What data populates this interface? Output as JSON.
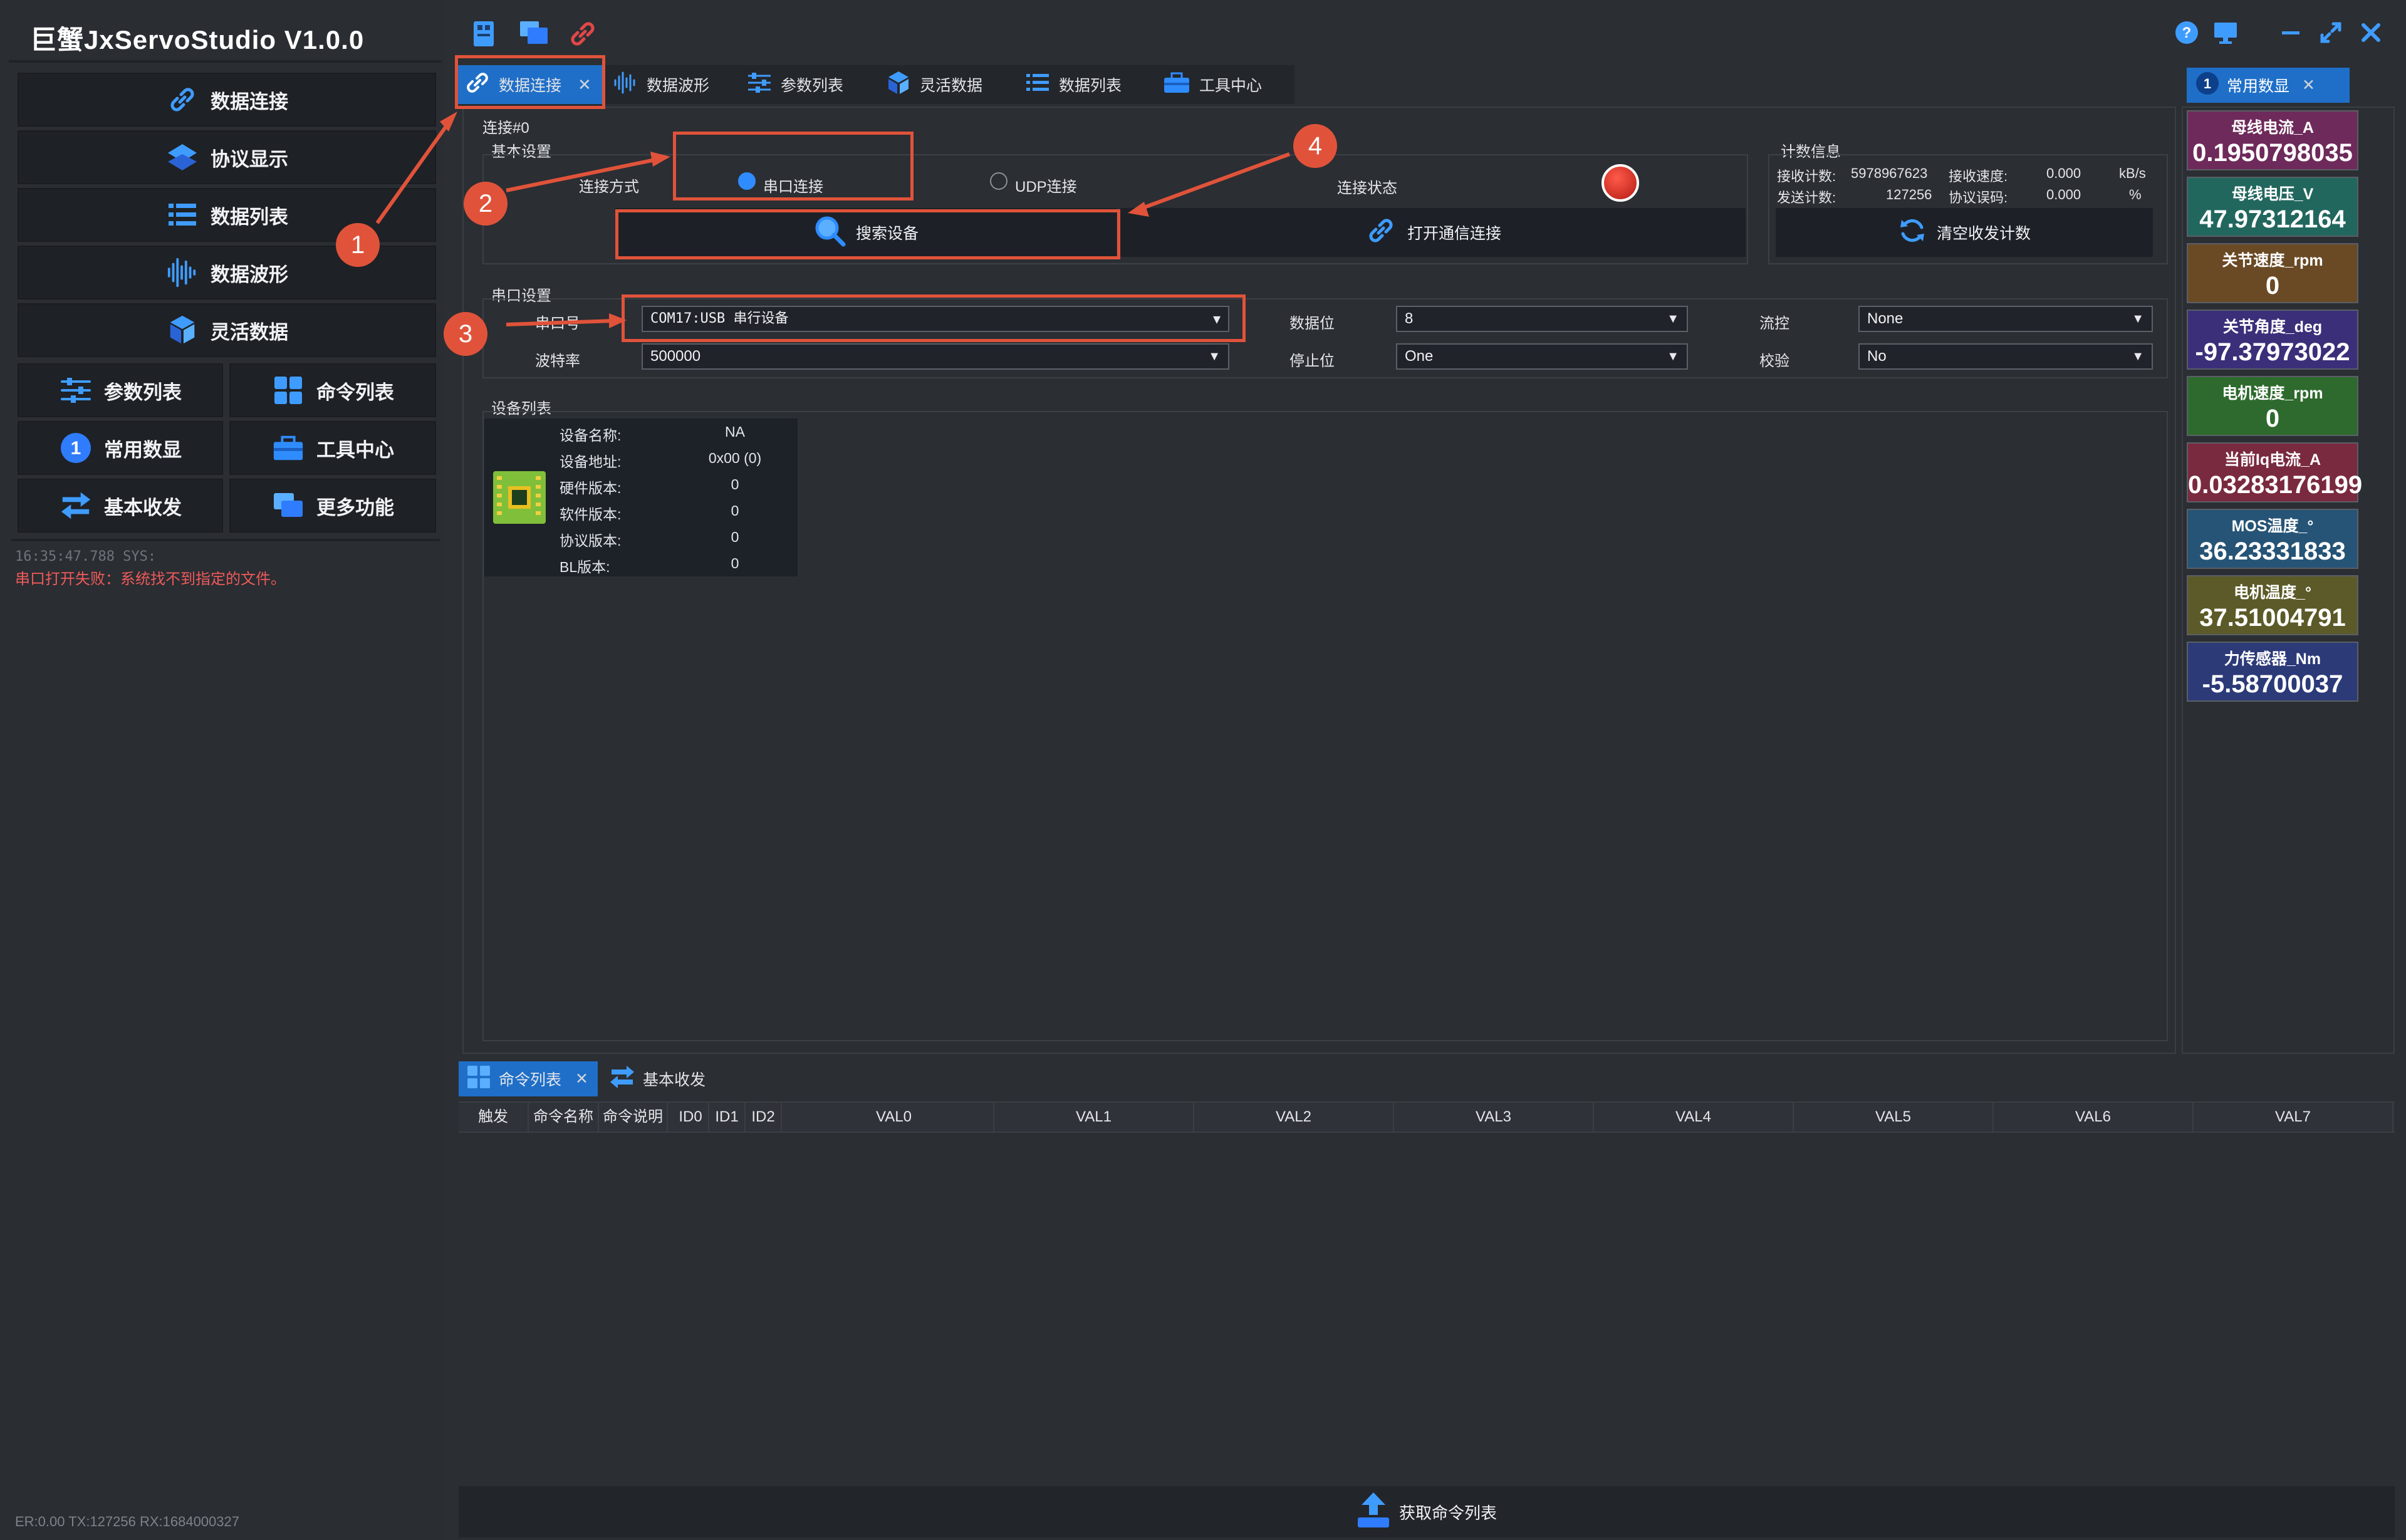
{
  "app": {
    "title": "巨蟹JxServoStudio   V1.0.0"
  },
  "sidebar": {
    "nav": [
      {
        "label": "数据连接",
        "icon": "link-icon"
      },
      {
        "label": "协议显示",
        "icon": "layers-icon"
      },
      {
        "label": "数据列表",
        "icon": "list-icon"
      },
      {
        "label": "数据波形",
        "icon": "waveform-icon"
      },
      {
        "label": "灵活数据",
        "icon": "cube-icon"
      }
    ],
    "grid": [
      {
        "label": "参数列表",
        "icon": "sliders-icon"
      },
      {
        "label": "命令列表",
        "icon": "grid-icon"
      },
      {
        "label": "常用数显",
        "icon": "number-one-icon"
      },
      {
        "label": "工具中心",
        "icon": "toolbox-icon"
      },
      {
        "label": "基本收发",
        "icon": "swap-icon"
      },
      {
        "label": "更多功能",
        "icon": "windows-icon"
      }
    ],
    "log_time": "16:35:47.788 SYS:",
    "log_message": "串口打开失败：系统找不到指定的文件。",
    "status_footer": "ER:0.00 TX:127256 RX:1684000327"
  },
  "tabs": [
    {
      "label": "数据连接",
      "icon": "link-icon",
      "active": true
    },
    {
      "label": "数据波形",
      "icon": "waveform-icon"
    },
    {
      "label": "参数列表",
      "icon": "sliders-icon"
    },
    {
      "label": "灵活数据",
      "icon": "cube-icon"
    },
    {
      "label": "数据列表",
      "icon": "list-icon"
    },
    {
      "label": "工具中心",
      "icon": "toolbox-icon"
    }
  ],
  "tab_close": "✕",
  "connection": {
    "heading": "连接#0",
    "basic_settings": "基本设置",
    "mode_label": "连接方式",
    "serial_option": "串口连接",
    "udp_option": "UDP连接",
    "status_label": "连接状态",
    "search_button": "搜索设备",
    "open_button": "打开通信连接"
  },
  "stats": {
    "heading": "计数信息",
    "rx_count_label": "接收计数:",
    "rx_count": "5978967623",
    "rx_speed_label": "接收速度:",
    "rx_speed": "0.000",
    "rx_speed_unit": "kB/s",
    "tx_count_label": "发送计数:",
    "tx_count": "127256",
    "err_label": "协议误码:",
    "err_rate": "0.000",
    "err_unit": "%",
    "clear_button": "清空收发计数"
  },
  "serial": {
    "heading": "串口设置",
    "port_label": "串口号",
    "port_value": "COM17:USB 串行设备",
    "baud_label": "波特率",
    "baud_value": "500000",
    "databits_label": "数据位",
    "databits_value": "8",
    "stopbits_label": "停止位",
    "stopbits_value": "One",
    "flow_label": "流控",
    "flow_value": "None",
    "parity_label": "校验",
    "parity_value": "No"
  },
  "devices": {
    "heading": "设备列表",
    "rows": [
      {
        "label": "设备名称:",
        "value": "NA"
      },
      {
        "label": "设备地址:",
        "value": "0x00 (0)"
      },
      {
        "label": "硬件版本:",
        "value": "0"
      },
      {
        "label": "软件版本:",
        "value": "0"
      },
      {
        "label": "协议版本:",
        "value": "0"
      },
      {
        "label": "BL版本:",
        "value": "0"
      }
    ]
  },
  "right_panel": {
    "tab_label": "常用数显",
    "badge": "1",
    "cards": [
      {
        "title": "母线电流_A",
        "value": "0.1950798035",
        "color": "#6e2a5a"
      },
      {
        "title": "母线电压_V",
        "value": "47.97312164",
        "color": "#22675e"
      },
      {
        "title": "关节速度_rpm",
        "value": "0",
        "color": "#6a4a25"
      },
      {
        "title": "关节角度_deg",
        "value": "-97.37973022",
        "color": "#3b2f7a"
      },
      {
        "title": "电机速度_rpm",
        "value": "0",
        "color": "#2e6a2e"
      },
      {
        "title": "当前Iq电流_A",
        "value": "0.03283176199",
        "color": "#7a2a3e"
      },
      {
        "title": "MOS温度_°",
        "value": "36.23331833",
        "color": "#265476"
      },
      {
        "title": "电机温度_°",
        "value": "37.51004791",
        "color": "#5c5a28"
      },
      {
        "title": "力传感器_Nm",
        "value": "-5.58700037",
        "color": "#2c3a78"
      }
    ]
  },
  "bottom": {
    "tabs": [
      {
        "label": "命令列表",
        "icon": "grid-icon",
        "active": true
      },
      {
        "label": "基本收发",
        "icon": "swap-icon"
      }
    ],
    "columns": [
      "触发",
      "命令名称",
      "命令说明",
      "ID0",
      "ID1",
      "ID2",
      "VAL0",
      "VAL1",
      "VAL2",
      "VAL3",
      "VAL4",
      "VAL5",
      "VAL6",
      "VAL7"
    ],
    "fetch_button": "获取命令列表"
  },
  "annotations": [
    "1",
    "2",
    "3",
    "4"
  ],
  "colors": {
    "accent": "#1f6fc8",
    "annotation": "#e0533a",
    "error": "#ef5a5a"
  }
}
